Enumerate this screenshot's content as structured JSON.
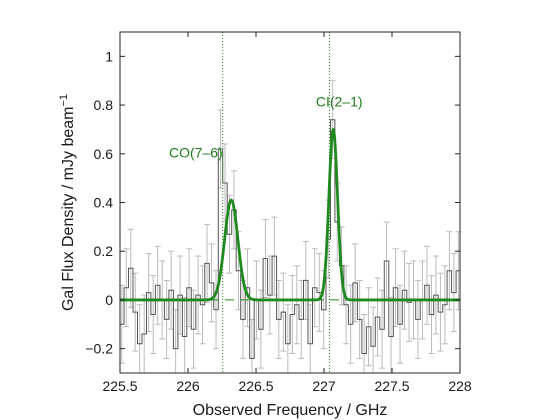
{
  "chart_data": {
    "type": "line",
    "xlabel": "Observed Frequency / GHz",
    "ylabel": "Gal Flux Density / mJy beam",
    "ylabel_superscript": "−1",
    "xlim": [
      225.5,
      228.0
    ],
    "ylim": [
      -0.3,
      1.1
    ],
    "xticks": [
      225.5,
      226,
      226.5,
      227,
      227.5,
      228
    ],
    "xtick_labels": [
      "225.5",
      "226",
      "226.5",
      "227",
      "227.5",
      "228"
    ],
    "yticks": [
      -0.2,
      0,
      0.2,
      0.4,
      0.6,
      0.8,
      1
    ],
    "ytick_labels": [
      "−0.2",
      "0",
      "0.2",
      "0.4",
      "0.6",
      "0.8",
      "1"
    ],
    "grid": false,
    "colors": {
      "spectrum": "#555555",
      "errorbars": "#bbbbbb",
      "fit": "#1e8a1e",
      "zero_line": "#1e8a1e",
      "marker_lines": "#1e8a1e",
      "labels": "#1e7d1e"
    },
    "spectrum": {
      "name": "",
      "bin_width": 0.033,
      "x": [
        225.48,
        225.513,
        225.546,
        225.579,
        225.612,
        225.645,
        225.678,
        225.711,
        225.744,
        225.777,
        225.81,
        225.843,
        225.876,
        225.909,
        225.942,
        225.975,
        226.008,
        226.041,
        226.074,
        226.107,
        226.14,
        226.173,
        226.206,
        226.239,
        226.272,
        226.305,
        226.338,
        226.371,
        226.404,
        226.437,
        226.47,
        226.503,
        226.536,
        226.569,
        226.602,
        226.635,
        226.668,
        226.701,
        226.734,
        226.767,
        226.8,
        226.833,
        226.866,
        226.899,
        226.932,
        226.965,
        226.998,
        227.031,
        227.064,
        227.097,
        227.13,
        227.163,
        227.196,
        227.229,
        227.262,
        227.295,
        227.328,
        227.361,
        227.394,
        227.427,
        227.46,
        227.493,
        227.526,
        227.559,
        227.592,
        227.625,
        227.658,
        227.691,
        227.724,
        227.757,
        227.79,
        227.823,
        227.856,
        227.889,
        227.922,
        227.955,
        227.988
      ],
      "y": [
        0.02,
        -0.1,
        0.05,
        0.13,
        -0.05,
        -0.18,
        -0.14,
        0.03,
        -0.06,
        0.06,
        0.0,
        -0.08,
        0.04,
        -0.2,
        0.02,
        -0.15,
        0.05,
        -0.12,
        0.02,
        -0.02,
        0.15,
        0.07,
        -0.04,
        0.62,
        0.48,
        0.27,
        0.37,
        0.12,
        -0.08,
        0.05,
        -0.24,
        0.0,
        -0.12,
        0.17,
        0.02,
        0.18,
        -0.08,
        -0.05,
        -0.18,
        -0.06,
        -0.02,
        -0.08,
        0.08,
        -0.18,
        0.05,
        0.03,
        -0.04,
        0.25,
        0.74,
        0.32,
        0.14,
        -0.02,
        -0.1,
        0.07,
        -0.08,
        -0.22,
        -0.11,
        -0.19,
        -0.07,
        -0.12,
        0.16,
        -0.15,
        0.05,
        -0.1,
        0.04,
        -0.01,
        0.0,
        -0.08,
        0.0,
        0.06,
        -0.06,
        0.02,
        -0.05,
        -0.02,
        0.12,
        0.03,
        0.12
      ],
      "error": 0.16
    },
    "fit": {
      "name": "",
      "baseline": 0.0,
      "lines": [
        {
          "center": 226.318,
          "amplitude": 0.41,
          "fwhm": 0.115
        },
        {
          "center": 227.068,
          "amplitude": 0.7,
          "fwhm": 0.075
        }
      ]
    },
    "marker_lines": [
      226.255,
      227.04
    ],
    "annotations": [
      {
        "text": "CO(7–6)",
        "x": 225.86,
        "y": 0.585
      },
      {
        "text": "CI(2–1)",
        "x": 226.94,
        "y": 0.795
      }
    ]
  }
}
